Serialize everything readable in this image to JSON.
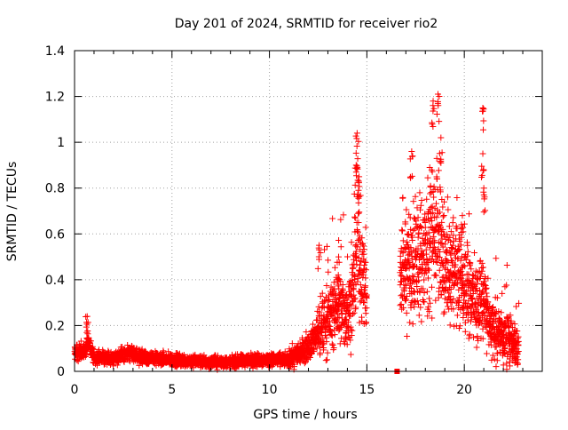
{
  "chart_data": {
    "type": "scatter",
    "title": "Day 201 of 2024, SRMTID for receiver rio2",
    "xlabel": "GPS time / hours",
    "ylabel": "SRMTID / TECUs",
    "xlim": [
      0,
      24
    ],
    "ylim": [
      0,
      1.4
    ],
    "xticks": [
      0,
      5,
      10,
      15,
      20
    ],
    "yticks": [
      0,
      0.2,
      0.4,
      0.6,
      0.8,
      1,
      1.2,
      1.4
    ],
    "xtick_labels": [
      "0",
      "5",
      "10",
      "15",
      "20"
    ],
    "ytick_labels": [
      "0",
      "0.2",
      "0.4",
      "0.6",
      "0.8",
      "1",
      "1.2",
      "1.4"
    ],
    "grid": true,
    "marker": "+",
    "color": "#ff0000",
    "profile": [
      [
        0.0,
        0.08
      ],
      [
        0.5,
        0.09
      ],
      [
        0.7,
        0.13
      ],
      [
        1.0,
        0.06
      ],
      [
        2.0,
        0.06
      ],
      [
        2.8,
        0.08
      ],
      [
        3.5,
        0.06
      ],
      [
        5.0,
        0.05
      ],
      [
        6.0,
        0.045
      ],
      [
        7.0,
        0.04
      ],
      [
        8.0,
        0.04
      ],
      [
        9.0,
        0.05
      ],
      [
        10.0,
        0.05
      ],
      [
        11.0,
        0.05
      ],
      [
        11.5,
        0.08
      ],
      [
        12.0,
        0.11
      ],
      [
        12.5,
        0.17
      ],
      [
        13.0,
        0.23
      ],
      [
        13.5,
        0.28
      ],
      [
        14.0,
        0.25
      ],
      [
        14.3,
        0.35
      ],
      [
        14.5,
        0.55
      ],
      [
        14.8,
        0.4
      ],
      [
        15.0,
        0.35
      ],
      [
        16.8,
        0.42
      ],
      [
        17.2,
        0.45
      ],
      [
        17.5,
        0.48
      ],
      [
        17.8,
        0.5
      ],
      [
        18.2,
        0.55
      ],
      [
        18.6,
        0.6
      ],
      [
        19.0,
        0.45
      ],
      [
        19.5,
        0.42
      ],
      [
        20.0,
        0.38
      ],
      [
        20.5,
        0.32
      ],
      [
        20.8,
        0.3
      ],
      [
        21.0,
        0.35
      ],
      [
        21.3,
        0.2
      ],
      [
        22.0,
        0.15
      ],
      [
        22.5,
        0.14
      ],
      [
        22.8,
        0.1
      ]
    ],
    "gaps": [
      [
        15.0,
        16.7
      ]
    ],
    "spikes": [
      {
        "x": 0.65,
        "y": 0.24
      },
      {
        "x": 12.55,
        "y": 0.55
      },
      {
        "x": 13.55,
        "y": 0.5
      },
      {
        "x": 14.5,
        "y": 1.04
      },
      {
        "x": 14.45,
        "y": 0.9
      },
      {
        "x": 14.6,
        "y": 0.85
      },
      {
        "x": 17.3,
        "y": 0.96
      },
      {
        "x": 18.4,
        "y": 1.18
      },
      {
        "x": 18.65,
        "y": 1.21
      },
      {
        "x": 18.8,
        "y": 1.02
      },
      {
        "x": 19.9,
        "y": 0.68
      },
      {
        "x": 20.95,
        "y": 1.15
      },
      {
        "x": 20.95,
        "y": 0.95
      },
      {
        "x": 21.0,
        "y": 0.8
      }
    ],
    "outliers": [
      {
        "x": 16.55,
        "y": 0.0
      }
    ]
  }
}
